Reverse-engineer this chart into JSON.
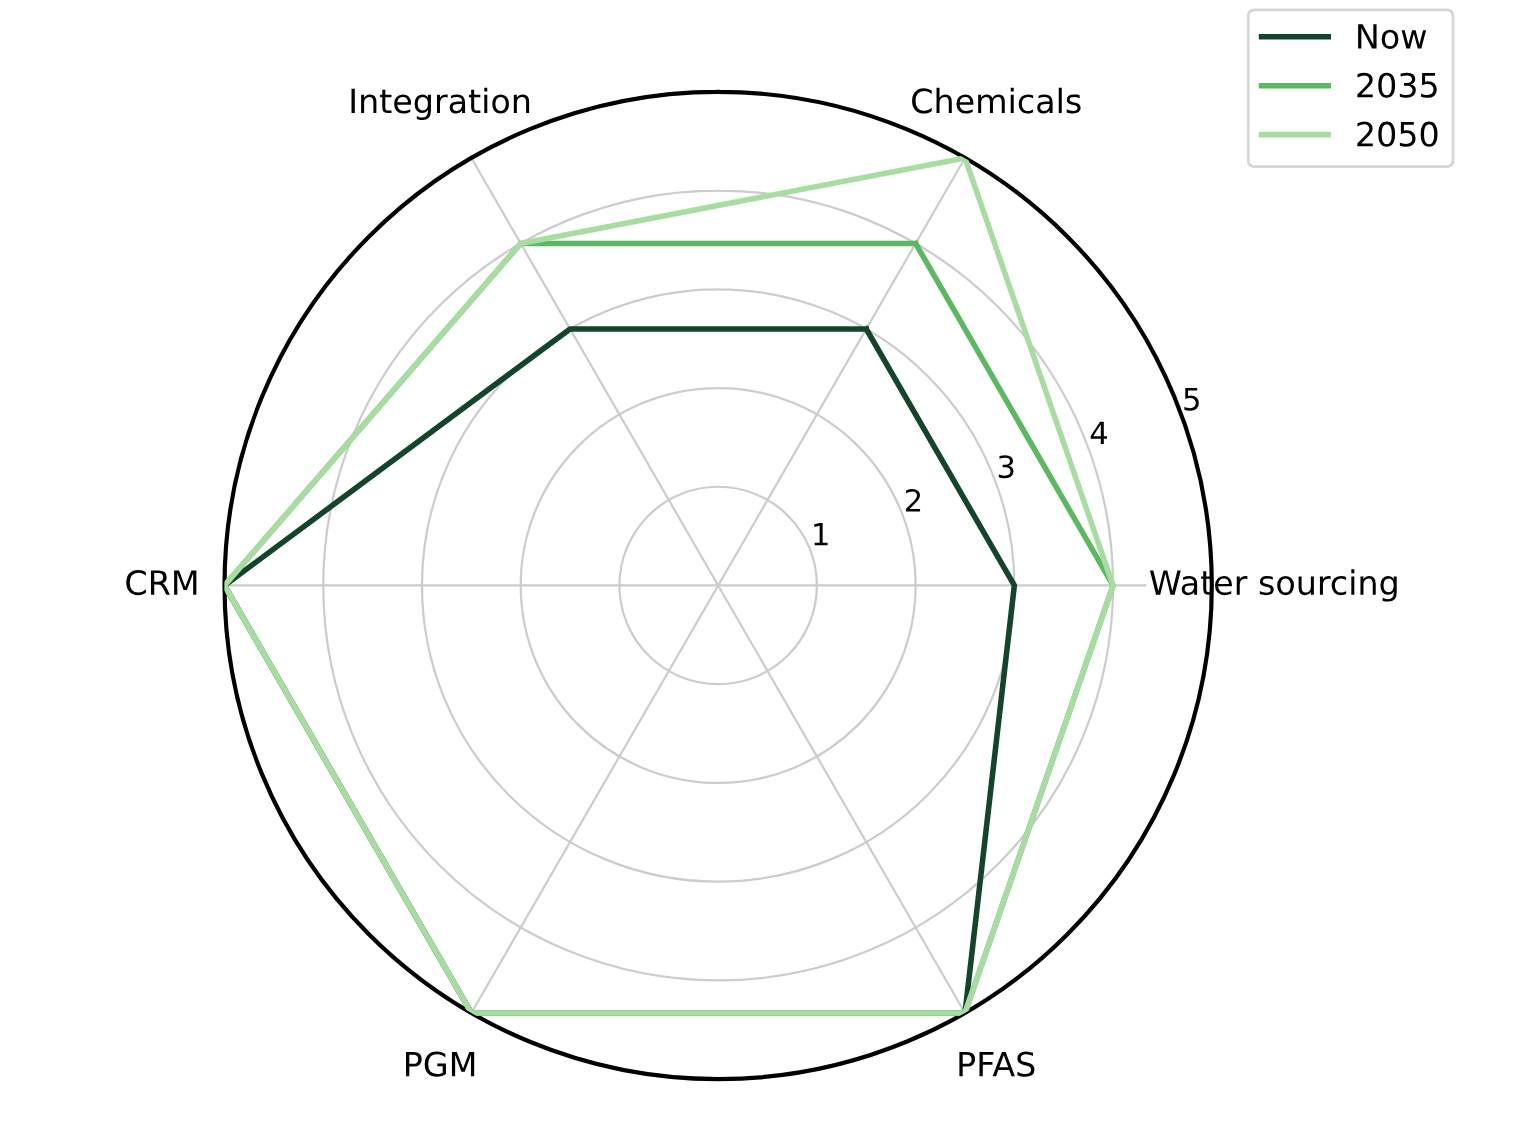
{
  "chart_data": {
    "type": "radar",
    "categories": [
      "Chemicals",
      "Water sourcing",
      "PFAS",
      "PGM",
      "CRM",
      "Integration"
    ],
    "series": [
      {
        "name": "Now",
        "color": "#14452a",
        "values": [
          3,
          3,
          5,
          5,
          5,
          3
        ]
      },
      {
        "name": "2035",
        "color": "#5cb863",
        "values": [
          4,
          4,
          5,
          5,
          5,
          4
        ]
      },
      {
        "name": "2050",
        "color": "#a9dca3",
        "values": [
          5,
          4,
          5,
          5,
          5,
          4
        ]
      }
    ],
    "ylim": [
      0,
      5
    ],
    "yticks": [
      1,
      2,
      3,
      4,
      5
    ],
    "grid": true,
    "legend": "top right",
    "line_style": "solid",
    "marker": "none"
  }
}
